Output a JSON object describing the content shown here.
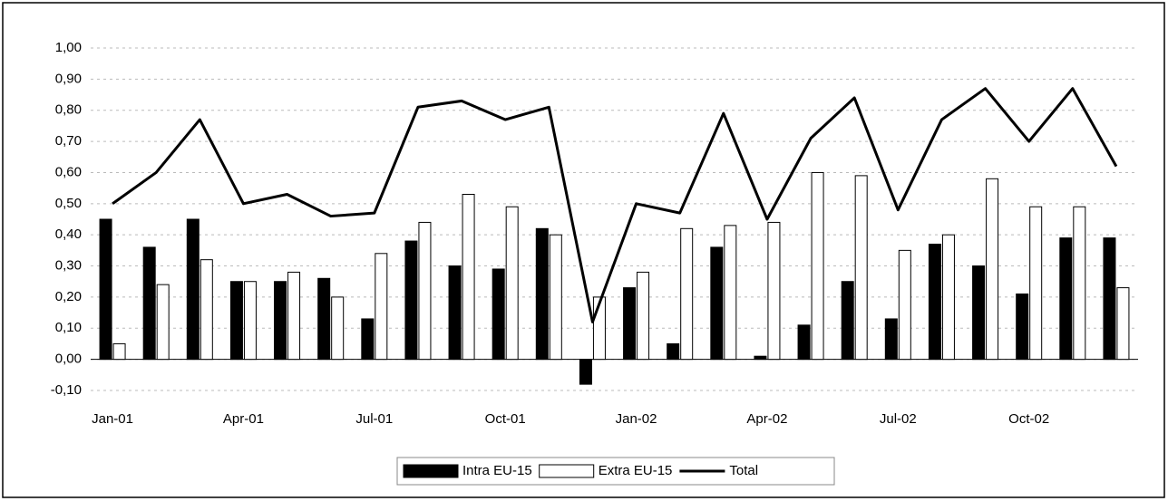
{
  "chart_data": {
    "type": "bar-line",
    "categories": [
      "Jan-01",
      null,
      null,
      "Apr-01",
      null,
      null,
      "Jul-01",
      null,
      null,
      "Oct-01",
      null,
      null,
      "Jan-02",
      null,
      null,
      "Apr-02",
      null,
      null,
      "Jul-02",
      null,
      null,
      "Oct-02",
      null,
      null
    ],
    "series": [
      {
        "name": "Intra EU-15",
        "color": "#000000",
        "kind": "bar",
        "values": [
          0.45,
          0.36,
          0.45,
          0.25,
          0.25,
          0.26,
          0.13,
          0.38,
          0.3,
          0.29,
          0.42,
          -0.08,
          0.23,
          0.05,
          0.36,
          0.01,
          0.11,
          0.25,
          0.13,
          0.37,
          0.3,
          0.21,
          0.39,
          0.39
        ]
      },
      {
        "name": "Extra EU-15",
        "color": "#ffffff",
        "kind": "bar",
        "values": [
          0.05,
          0.24,
          0.32,
          0.25,
          0.28,
          0.2,
          0.34,
          0.44,
          0.53,
          0.49,
          0.4,
          0.2,
          0.28,
          0.42,
          0.43,
          0.44,
          0.6,
          0.59,
          0.35,
          0.4,
          0.58,
          0.49,
          0.49,
          0.23
        ]
      },
      {
        "name": "Total",
        "color": "#000000",
        "kind": "line",
        "values": [
          0.5,
          0.6,
          0.77,
          0.5,
          0.53,
          0.46,
          0.47,
          0.81,
          0.83,
          0.77,
          0.81,
          0.12,
          0.5,
          0.47,
          0.79,
          0.45,
          0.71,
          0.84,
          0.48,
          0.77,
          0.87,
          0.7,
          0.87,
          0.62
        ]
      }
    ],
    "ylim": [
      -0.1,
      1.0
    ],
    "yticks": [
      {
        "value": 1.0,
        "label": "1,00"
      },
      {
        "value": 0.9,
        "label": "0,90"
      },
      {
        "value": 0.8,
        "label": "0,80"
      },
      {
        "value": 0.7,
        "label": "0,70"
      },
      {
        "value": 0.6,
        "label": "0,60"
      },
      {
        "value": 0.5,
        "label": "0,50"
      },
      {
        "value": 0.4,
        "label": "0,40"
      },
      {
        "value": 0.3,
        "label": "0,30"
      },
      {
        "value": 0.2,
        "label": "0,20"
      },
      {
        "value": 0.1,
        "label": "0,10"
      },
      {
        "value": 0.0,
        "label": "0,00"
      },
      {
        "value": -0.1,
        "label": "-0,10"
      }
    ],
    "grid": true,
    "legend": "bottom"
  }
}
